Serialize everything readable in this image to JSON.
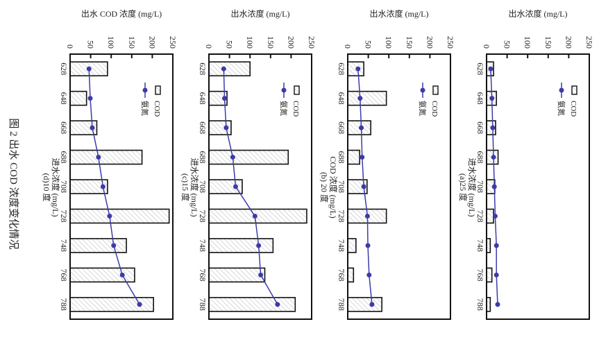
{
  "caption": "图 2   出水 COD 浓度变化情况",
  "colors": {
    "line": "#3b3ba8",
    "bar_edge": "#111111",
    "hatch": "#bbbbbb"
  },
  "chart_data": [
    {
      "type": "bar+line",
      "subtitle": "(a)25 度",
      "xlabel": "进水浓度 (mg/L)",
      "ylabel": "出水浓度 (mg/L)",
      "ylim": [
        0,
        250
      ],
      "yticks": [
        "0",
        "50",
        "100",
        "150",
        "200",
        "250"
      ],
      "categories": [
        "628",
        "648",
        "668",
        "688",
        "708",
        "728",
        "748",
        "768",
        "788"
      ],
      "legend": [
        "COD",
        "氨氮"
      ],
      "series": [
        {
          "name": "COD",
          "kind": "bar",
          "values": [
            17,
            24,
            22,
            28,
            20,
            17,
            9,
            13,
            9
          ]
        },
        {
          "name": "氨氮",
          "kind": "line",
          "values": [
            10,
            13,
            15,
            17,
            19,
            21,
            24,
            24,
            27
          ]
        }
      ]
    },
    {
      "type": "bar+line",
      "subtitle": "(b) 20 度",
      "xlabel": "COD 浓度 (mg/L)",
      "ylabel": "出水浓度 (mg/L)",
      "ylim": [
        0,
        250
      ],
      "yticks": [
        "0",
        "50",
        "100",
        "150",
        "200",
        "250"
      ],
      "categories": [
        "628",
        "648",
        "668",
        "688",
        "708",
        "728",
        "748",
        "768",
        "788"
      ],
      "legend": [
        "COD",
        "氨氮"
      ],
      "series": [
        {
          "name": "COD",
          "kind": "bar",
          "values": [
            39,
            94,
            56,
            29,
            47,
            94,
            20,
            14,
            83
          ]
        },
        {
          "name": "氨氮",
          "kind": "line",
          "values": [
            25,
            30,
            33,
            35,
            39,
            48,
            49,
            52,
            59
          ]
        }
      ]
    },
    {
      "type": "bar+line",
      "subtitle": "(c)15 度",
      "xlabel": "进水浓度 (mg/L)",
      "ylabel": "出水浓度 (mg/L)",
      "ylim": [
        0,
        250
      ],
      "yticks": [
        "0",
        "50",
        "100",
        "150",
        "200",
        "250"
      ],
      "categories": [
        "628",
        "648",
        "668",
        "688",
        "708",
        "728",
        "748",
        "768",
        "788"
      ],
      "legend": [
        "COD",
        "氨氮"
      ],
      "series": [
        {
          "name": "COD",
          "kind": "bar",
          "values": [
            100,
            44,
            54,
            193,
            81,
            238,
            156,
            136,
            210
          ]
        },
        {
          "name": "氨氮",
          "kind": "line",
          "values": [
            36,
            38,
            42,
            58,
            65,
            112,
            121,
            126,
            167
          ]
        }
      ]
    },
    {
      "type": "bar+line",
      "subtitle": "(d)10 度",
      "xlabel": "进水浓度 (mg/L)",
      "ylabel": "出水 COD 浓度 (mg/L)",
      "ylim": [
        0,
        250
      ],
      "yticks": [
        "0",
        "50",
        "100",
        "150",
        "200",
        "250"
      ],
      "categories": [
        "628",
        "648",
        "668",
        "688",
        "708",
        "728",
        "748",
        "768",
        "788"
      ],
      "legend": [
        "COD",
        "氨氮"
      ],
      "series": [
        {
          "name": "COD",
          "kind": "bar",
          "values": [
            91,
            40,
            65,
            175,
            91,
            241,
            137,
            157,
            203
          ]
        },
        {
          "name": "氨氮",
          "kind": "line",
          "values": [
            46,
            49,
            54,
            69,
            80,
            96,
            106,
            127,
            169
          ]
        }
      ]
    }
  ]
}
